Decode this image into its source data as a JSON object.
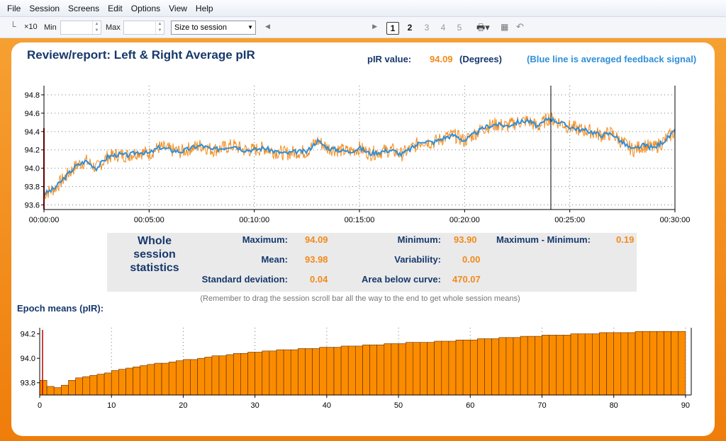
{
  "menu": [
    "File",
    "Session",
    "Screens",
    "Edit",
    "Options",
    "View",
    "Help"
  ],
  "toolbar": {
    "x10_label": "×10",
    "min_label": "Min",
    "max_label": "Max",
    "size_select_value": "Size to session",
    "pages": [
      "1",
      "2",
      "3",
      "4",
      "5"
    ],
    "active_page": "1"
  },
  "report": {
    "title": "Review/report: Left & Right Average pIR",
    "value_label": "pIR value:",
    "value": "94.09",
    "unit": "(Degrees)",
    "note_blue": "(Blue line is averaged feedback signal)"
  },
  "stats": {
    "title_lines": [
      "Whole",
      "session",
      "statistics"
    ],
    "maximum_label": "Maximum:",
    "maximum": "94.09",
    "minimum_label": "Minimum:",
    "minimum": "93.90",
    "range_label": "Maximum - Minimum:",
    "range": "0.19",
    "mean_label": "Mean:",
    "mean": "93.98",
    "variability_label": "Variability:",
    "variability": "0.00",
    "sd_label": "Standard deviation:",
    "sd": "0.04",
    "area_label": "Area below curve:",
    "area": "470.07",
    "hint": "(Remember to drag the session scroll bar all the way to the end to get whole session means)"
  },
  "epoch": {
    "title": "Epoch means (pIR):"
  },
  "colors": {
    "orange": "#f28a1a",
    "blue": "#2f8fd8",
    "navy": "#16386c",
    "bar": "#fb8c00"
  },
  "chart_data": [
    {
      "type": "line",
      "ylim": [
        93.55,
        94.9
      ],
      "yticks": [
        "94.8",
        "94.6",
        "94.4",
        "94.2",
        "94.0",
        "93.8",
        "93.6"
      ],
      "xticks": [
        "00:00:00",
        "00:05:00",
        "00:10:00",
        "00:15:00",
        "00:20:00",
        "00:25:00",
        "00:30:00"
      ],
      "cursor_minutes": 24.1,
      "series": [
        {
          "color": "#2f8fd8",
          "x_minutes": [
            0,
            0.5,
            1,
            1.5,
            2,
            2.5,
            3,
            3.5,
            4,
            4.5,
            5,
            5.5,
            6,
            6.5,
            7,
            7.5,
            8,
            8.5,
            9,
            9.5,
            10,
            10.5,
            11,
            11.5,
            12,
            12.5,
            13,
            13.5,
            14,
            14.5,
            15,
            15.5,
            16,
            16.5,
            17,
            17.5,
            18,
            18.5,
            19,
            19.5,
            20,
            20.5,
            21,
            21.5,
            22,
            22.5,
            23,
            23.5,
            24,
            24.5,
            25,
            25.5,
            26,
            26.5,
            27,
            27.5,
            28,
            28.5,
            29,
            29.5,
            30
          ],
          "values": [
            93.72,
            93.78,
            93.9,
            94.02,
            94.08,
            94.0,
            94.12,
            94.15,
            94.14,
            94.18,
            94.16,
            94.23,
            94.2,
            94.18,
            94.22,
            94.25,
            94.2,
            94.22,
            94.25,
            94.2,
            94.2,
            94.22,
            94.18,
            94.16,
            94.18,
            94.18,
            94.3,
            94.22,
            94.2,
            94.18,
            94.22,
            94.16,
            94.18,
            94.2,
            94.15,
            94.22,
            94.3,
            94.28,
            94.33,
            94.36,
            94.3,
            94.38,
            94.45,
            94.48,
            94.46,
            94.5,
            94.52,
            94.45,
            94.55,
            94.5,
            94.45,
            94.42,
            94.4,
            94.36,
            94.38,
            94.28,
            94.2,
            94.25,
            94.22,
            94.3,
            94.4
          ]
        }
      ]
    },
    {
      "type": "bar",
      "title": "Epoch means (pIR):",
      "ylim": [
        93.7,
        94.25
      ],
      "yticks": [
        "94.2",
        "94.0",
        "93.8"
      ],
      "xticks": [
        "0",
        "10",
        "20",
        "30",
        "40",
        "50",
        "60",
        "70",
        "80",
        "90"
      ],
      "categories_range": [
        1,
        90
      ],
      "values": [
        93.82,
        93.77,
        93.76,
        93.78,
        93.82,
        93.84,
        93.85,
        93.86,
        93.87,
        93.88,
        93.9,
        93.91,
        93.92,
        93.93,
        93.94,
        93.95,
        93.96,
        93.96,
        93.97,
        93.98,
        93.99,
        93.99,
        94.0,
        94.01,
        94.02,
        94.02,
        94.03,
        94.04,
        94.04,
        94.05,
        94.05,
        94.06,
        94.06,
        94.07,
        94.07,
        94.07,
        94.08,
        94.08,
        94.08,
        94.09,
        94.09,
        94.09,
        94.1,
        94.1,
        94.1,
        94.11,
        94.11,
        94.11,
        94.12,
        94.12,
        94.12,
        94.13,
        94.13,
        94.13,
        94.13,
        94.14,
        94.14,
        94.14,
        94.15,
        94.15,
        94.15,
        94.16,
        94.16,
        94.16,
        94.17,
        94.17,
        94.17,
        94.18,
        94.18,
        94.18,
        94.19,
        94.19,
        94.19,
        94.19,
        94.2,
        94.2,
        94.2,
        94.2,
        94.21,
        94.21,
        94.21,
        94.21,
        94.21,
        94.22,
        94.22,
        94.22,
        94.22,
        94.22,
        94.22,
        94.22
      ]
    }
  ]
}
